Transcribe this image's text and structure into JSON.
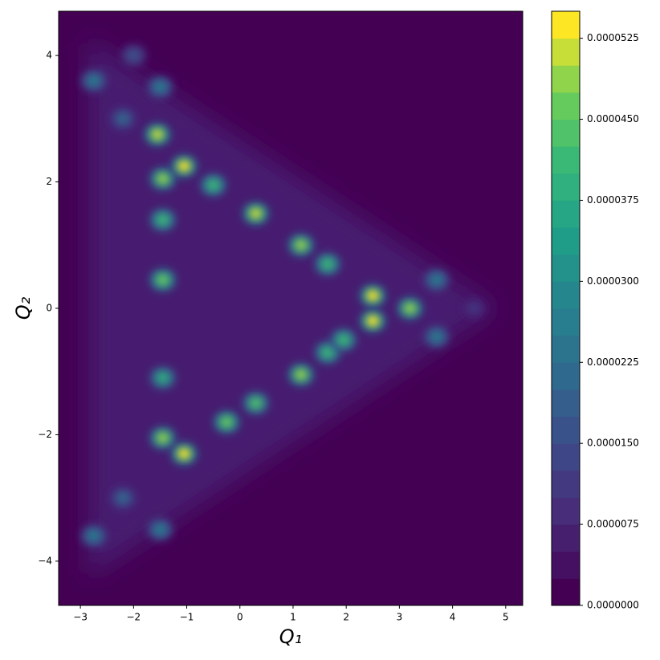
{
  "chart_data": {
    "type": "contour",
    "xlabel": "Q₁",
    "ylabel": "Q₂",
    "xlim": [
      -3.41,
      5.32
    ],
    "ylim": [
      -4.7,
      4.7
    ],
    "xticks": [
      {
        "value": -3,
        "label": "−3"
      },
      {
        "value": -2,
        "label": "−2"
      },
      {
        "value": -1,
        "label": "−1"
      },
      0,
      1,
      2,
      3,
      4,
      5
    ],
    "yticks": [
      {
        "value": -4,
        "label": "−4"
      },
      {
        "value": -2,
        "label": "−2"
      },
      0,
      2,
      4
    ],
    "colormap": "viridis",
    "levels": 22,
    "clim": [
      0,
      5.5e-05
    ],
    "cticks": [
      {
        "value": 0,
        "label": "0.0000000"
      },
      {
        "value": 7.5e-06,
        "label": "0.0000075"
      },
      {
        "value": 1.5e-05,
        "label": "0.0000150"
      },
      {
        "value": 2.25e-05,
        "label": "0.0000225"
      },
      {
        "value": 3e-05,
        "label": "0.0000300"
      },
      {
        "value": 3.75e-05,
        "label": "0.0000375"
      },
      {
        "value": 4.5e-05,
        "label": "0.0000450"
      },
      {
        "value": 5.25e-05,
        "label": "0.0000525"
      }
    ],
    "x": [
      -1.55,
      -1.45,
      -1.05,
      0.3,
      1.15,
      -1.45,
      2.5,
      2.5,
      3.2,
      1.15,
      0.3,
      -0.25,
      -1.45,
      -1.05,
      -1.45,
      -1.45,
      -0.5,
      1.65,
      1.65,
      1.95,
      -2.75,
      -2.75,
      -2.0,
      4.4,
      3.7,
      3.7,
      -1.5,
      -1.5,
      -2.2,
      -2.2
    ],
    "y": [
      2.75,
      2.05,
      2.25,
      1.5,
      1.0,
      0.45,
      0.2,
      -0.2,
      0.0,
      -1.05,
      -1.5,
      -1.8,
      -2.05,
      -2.3,
      1.4,
      -1.1,
      1.95,
      0.7,
      -0.7,
      -0.5,
      3.6,
      -3.6,
      4.0,
      0.0,
      0.45,
      -0.45,
      3.5,
      -3.5,
      3.0,
      -3.0
    ],
    "values": [
      5e-05,
      4.8e-05,
      5.3e-05,
      5e-05,
      4.8e-05,
      4.5e-05,
      5.3e-05,
      5.3e-05,
      4.8e-05,
      4.8e-05,
      4.3e-05,
      4.6e-05,
      4.8e-05,
      5.3e-05,
      4e-05,
      3.8e-05,
      4e-05,
      4e-05,
      4e-05,
      4e-05,
      2.5e-05,
      2.5e-05,
      1.5e-05,
      1e-05,
      2.5e-05,
      2.5e-05,
      2.5e-05,
      2.5e-05,
      2.2e-05,
      2.2e-05
    ]
  }
}
